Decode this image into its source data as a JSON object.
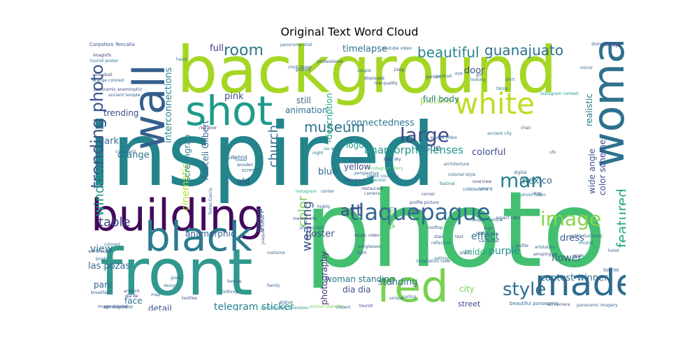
{
  "title": "Original Text Word Cloud",
  "words": [
    {
      "text": "inspired",
      "color": "#23848c"
    },
    {
      "text": "photo",
      "color": "#43bf71"
    },
    {
      "text": "background",
      "color": "#a5d624"
    },
    {
      "text": "building",
      "color": "#43085c"
    },
    {
      "text": "front",
      "color": "#31998d"
    },
    {
      "text": "black",
      "color": "#2a7b8d"
    },
    {
      "text": "wall",
      "color": "#355f8d"
    },
    {
      "text": "shot",
      "color": "#1f9a8a"
    },
    {
      "text": "white",
      "color": "#bdde26"
    },
    {
      "text": "woman",
      "color": "#2d718e"
    },
    {
      "text": "made",
      "color": "#2f6c8e"
    },
    {
      "text": "red",
      "color": "#7ad151"
    },
    {
      "text": "tlaquepaque",
      "color": "#31688e"
    },
    {
      "text": "trending photo",
      "color": "#3b528b"
    },
    {
      "text": "window",
      "color": "#1e9b8a"
    },
    {
      "text": "image",
      "color": "#86d549"
    },
    {
      "text": "man",
      "color": "#26828e"
    },
    {
      "text": "room",
      "color": "#2b758e"
    },
    {
      "text": "art",
      "color": "#3f4889"
    },
    {
      "text": "style",
      "color": "#2e6e8e"
    },
    {
      "text": "large",
      "color": "#3e4a89"
    },
    {
      "text": "beautiful",
      "color": "#25858e"
    },
    {
      "text": "museum",
      "color": "#2c738e"
    },
    {
      "text": "featured",
      "color": "#22a884"
    },
    {
      "text": "guanajuato",
      "color": "#2c718e"
    },
    {
      "text": "church",
      "color": "#2d708e"
    },
    {
      "text": "color",
      "color": "#7ad151"
    },
    {
      "text": "wearing",
      "color": "#3b528b"
    },
    {
      "text": "table",
      "color": "#404688"
    },
    {
      "text": "anamorphic lenses",
      "color": "#1f968b"
    },
    {
      "text": "connectedness",
      "color": "#2a788e"
    },
    {
      "text": "interconnections",
      "color": "#26828e"
    },
    {
      "text": "cinematic",
      "color": "#b5de2b"
    },
    {
      "text": "poster",
      "color": "#3b528b"
    },
    {
      "text": "effect",
      "color": "#2c728e"
    },
    {
      "text": "dress",
      "color": "#38598c"
    },
    {
      "text": "flower",
      "color": "#35608d"
    },
    {
      "text": "purple",
      "color": "#21918c"
    },
    {
      "text": "contest winner",
      "color": "#31688e"
    },
    {
      "text": "standing",
      "color": "#2e6f8e"
    },
    {
      "text": "woman standing",
      "color": "#2a788e"
    },
    {
      "text": "photography",
      "color": "#482878"
    },
    {
      "text": "dia dia",
      "color": "#3e4c8a"
    },
    {
      "text": "telegram sticker",
      "color": "#26818e"
    },
    {
      "text": "detail",
      "color": "#39568c"
    },
    {
      "text": "face",
      "color": "#2c728e"
    },
    {
      "text": "park",
      "color": "#33638d"
    },
    {
      "text": "view",
      "color": "#2f6b8e"
    },
    {
      "text": "las pozas",
      "color": "#31688e"
    },
    {
      "text": "anamorphic",
      "color": "#355e8d"
    },
    {
      "text": "orange",
      "color": "#2c728e"
    },
    {
      "text": "dark",
      "color": "#30698e"
    },
    {
      "text": "trending",
      "color": "#3e4989"
    },
    {
      "text": "full",
      "color": "#443983"
    },
    {
      "text": "pink",
      "color": "#3d4e8a"
    },
    {
      "text": "still",
      "color": "#33638d"
    },
    {
      "text": "picture",
      "color": "#a2da37"
    },
    {
      "text": "animation",
      "color": "#2e6e8e"
    },
    {
      "text": "full body",
      "color": "#287d8e"
    },
    {
      "text": "logo",
      "color": "#1f988b"
    },
    {
      "text": "yellow",
      "color": "#3e4a89"
    },
    {
      "text": "castle",
      "color": "#2c718e"
    },
    {
      "text": "colorful",
      "color": "#3e4c8a"
    },
    {
      "text": "mexico",
      "color": "#30698e"
    },
    {
      "text": "color scheme",
      "color": "#3f4788"
    },
    {
      "text": "realistic",
      "color": "#2a788e"
    },
    {
      "text": "wide angle",
      "color": "#39568c"
    },
    {
      "text": "door",
      "color": "#3c4f8a"
    },
    {
      "text": "timelapse",
      "color": "#2d708e"
    },
    {
      "text": "description",
      "color": "#21a685"
    },
    {
      "text": "screengrab",
      "color": "#26818e"
    },
    {
      "text": "Araceli Gilbert",
      "color": "#32658e"
    },
    {
      "text": "old",
      "color": "#3a548c"
    },
    {
      "text": "group",
      "color": "#31688e"
    },
    {
      "text": "blue",
      "color": "#33638d"
    },
    {
      "text": "green",
      "color": "#52c569"
    },
    {
      "text": "middle",
      "color": "#29af7f"
    },
    {
      "text": "street",
      "color": "#3e4a89"
    },
    {
      "text": "city",
      "color": "#7ad151"
    },
    {
      "text": "Carpoforo Tencalla",
      "color": "#3b528b"
    },
    {
      "text": "pillars",
      "color": "#35608d"
    },
    {
      "text": "professional",
      "color": "#3e4989"
    },
    {
      "text": "imaginfx",
      "color": "#46337f"
    },
    {
      "text": "tourist poster",
      "color": "#2c728e"
    },
    {
      "text": "volleyball",
      "color": "#3e4a89"
    },
    {
      "text": "orange colored",
      "color": "#31688e"
    },
    {
      "text": "panoramic anamorphic",
      "color": "#3e4c8a"
    },
    {
      "text": "dia de",
      "color": "#443983"
    },
    {
      "text": "courtyard",
      "color": "#355e8d"
    },
    {
      "text": "camera",
      "color": "#26828e"
    },
    {
      "text": "instagram story",
      "color": "#52c569"
    },
    {
      "text": "instagram contest",
      "color": "#1f948c"
    },
    {
      "text": "tiktok",
      "color": "#2a788e"
    },
    {
      "text": "low quality",
      "color": "#3b528b"
    },
    {
      "text": "portrait",
      "color": "#30698e"
    },
    {
      "text": "240p",
      "color": "#3e4a89"
    },
    {
      "text": "iphone video",
      "color": "#31688e"
    },
    {
      "text": "ancient city",
      "color": "#2e6e8e"
    },
    {
      "text": "architecture",
      "color": "#33638d"
    },
    {
      "text": "colonial style",
      "color": "#31688e"
    },
    {
      "text": "restaurant",
      "color": "#3b528b"
    },
    {
      "text": "photo courtesy",
      "color": "#2c728e"
    },
    {
      "text": "projection",
      "color": "#21918c"
    },
    {
      "text": "perspective",
      "color": "#30698e"
    },
    {
      "text": "thumbnail",
      "color": "#3e4c8a"
    },
    {
      "text": "lighting",
      "color": "#355e8d"
    },
    {
      "text": "night",
      "color": "#2c728e"
    },
    {
      "text": "sifu",
      "color": "#33638d"
    },
    {
      "text": "screen",
      "color": "#31688e"
    },
    {
      "text": "behind",
      "color": "#3b528b"
    },
    {
      "text": "wooden",
      "color": "#355e8d"
    },
    {
      "text": "tower",
      "color": "#2a788e"
    },
    {
      "text": "mexico city",
      "color": "#3e4a89"
    },
    {
      "text": "photograph",
      "color": "#31688e"
    },
    {
      "text": "profile picture",
      "color": "#3e4c8a"
    },
    {
      "text": "instagram",
      "color": "#29af7f"
    },
    {
      "text": "highly",
      "color": "#355e8d"
    },
    {
      "text": "deeply textural",
      "color": "#2c728e"
    },
    {
      "text": "high",
      "color": "#33638d"
    },
    {
      "text": "sculpture",
      "color": "#31688e"
    },
    {
      "text": "stair",
      "color": "#3b528b"
    },
    {
      "text": "reflection",
      "color": "#2e6e8e"
    },
    {
      "text": "cathedral",
      "color": "#355e8d"
    },
    {
      "text": "artstation",
      "color": "#30698e"
    },
    {
      "text": "amazing",
      "color": "#3e4a89"
    },
    {
      "text": "setting",
      "color": "#2c728e"
    },
    {
      "text": "installation view",
      "color": "#31688e"
    },
    {
      "text": "profile",
      "color": "#3b528b"
    },
    {
      "text": "spain",
      "color": "#355e8d"
    },
    {
      "text": "tourist",
      "color": "#33638d"
    },
    {
      "text": "Judith Gutierrez",
      "color": "#31688e"
    },
    {
      "text": "aspect ratio",
      "color": "#3e4c8a"
    },
    {
      "text": "photo taken",
      "color": "#2a788e"
    },
    {
      "text": "red door",
      "color": "#443983"
    },
    {
      "text": "chair",
      "color": "#30698e"
    },
    {
      "text": "vfx",
      "color": "#2c728e"
    },
    {
      "text": "long",
      "color": "#3b528b"
    },
    {
      "text": "digital",
      "color": "#355e8d"
    },
    {
      "text": "youtube video",
      "color": "#31688e"
    },
    {
      "text": "music video",
      "color": "#3e4a89"
    },
    {
      "text": "sunglasses",
      "color": "#33638d"
    },
    {
      "text": "hand",
      "color": "#2e6e8e"
    },
    {
      "text": "world cup",
      "color": "#3b528b"
    },
    {
      "text": "breakfast",
      "color": "#355e8d"
    },
    {
      "text": "atmosphere",
      "color": "#31688e"
    },
    {
      "text": "image dataset",
      "color": "#3e4c8a"
    },
    {
      "text": "design",
      "color": "#2a788e"
    },
    {
      "text": "artwork",
      "color": "#33638d"
    },
    {
      "text": "map",
      "color": "#30698e"
    },
    {
      "text": "textiles",
      "color": "#3b528b"
    },
    {
      "text": "family",
      "color": "#355e8d"
    },
    {
      "text": "statue",
      "color": "#31688e"
    },
    {
      "text": "environment television",
      "color": "#21918c"
    },
    {
      "text": "woman standing",
      "color": "#7ad151"
    },
    {
      "text": "vibrant",
      "color": "#2c728e"
    },
    {
      "text": "tourist",
      "color": "#3e4a89"
    },
    {
      "text": "unique",
      "color": "#33638d"
    },
    {
      "text": "beautiful panoramic",
      "color": "#31688e"
    },
    {
      "text": "red camera",
      "color": "#3b528b"
    },
    {
      "text": "panoramic imagery",
      "color": "#355e8d"
    },
    {
      "text": "ceiling",
      "color": "#2e6e8e"
    },
    {
      "text": "golden",
      "color": "#3e4c8a"
    },
    {
      "text": "rooftop",
      "color": "#31688e"
    },
    {
      "text": "clothing",
      "color": "#33638d"
    },
    {
      "text": "Torres Garcia",
      "color": "#30698e"
    },
    {
      "text": "Joaquin Torres",
      "color": "#3b528b"
    },
    {
      "text": "female",
      "color": "#355e8d"
    },
    {
      "text": "costume",
      "color": "#31688e"
    },
    {
      "text": "mural",
      "color": "#2a788e"
    },
    {
      "text": "light",
      "color": "#3e4a89"
    },
    {
      "text": "text",
      "color": "#33638d"
    },
    {
      "text": "glass",
      "color": "#31688e"
    },
    {
      "text": "plant",
      "color": "#3b528b"
    },
    {
      "text": "young",
      "color": "#355e8d"
    },
    {
      "text": "colored",
      "color": "#2c728e"
    },
    {
      "text": "bright",
      "color": "#30698e"
    },
    {
      "text": "corner",
      "color": "#3e4c8a"
    },
    {
      "text": "center",
      "color": "#31688e"
    },
    {
      "text": "camera",
      "color": "#33638d"
    },
    {
      "text": "blue sky",
      "color": "#3b528b"
    },
    {
      "text": "iso wide",
      "color": "#2a788e"
    },
    {
      "text": "ancient temple",
      "color": "#355e8d"
    },
    {
      "text": "panorama shot",
      "color": "#31688e"
    },
    {
      "text": "stone building",
      "color": "#3e4a89"
    },
    {
      "text": "clock tower",
      "color": "#33638d"
    },
    {
      "text": "couple",
      "color": "#30698e"
    },
    {
      "text": "displayed",
      "color": "#3b528b"
    },
    {
      "text": "garden",
      "color": "#355e8d"
    },
    {
      "text": "eye",
      "color": "#31688e"
    },
    {
      "text": "looking",
      "color": "#2c728e"
    },
    {
      "text": "girl",
      "color": "#3e4c8a"
    },
    {
      "text": "shirt",
      "color": "#33638d"
    },
    {
      "text": "mirror",
      "color": "#31688e"
    },
    {
      "text": "fisheye",
      "color": "#3b528b"
    },
    {
      "text": "hotel",
      "color": "#355e8d"
    },
    {
      "text": "festival",
      "color": "#2a788e"
    },
    {
      "text": "cobblestone",
      "color": "#30698e"
    },
    {
      "text": "overview",
      "color": "#3e4a89"
    }
  ]
}
